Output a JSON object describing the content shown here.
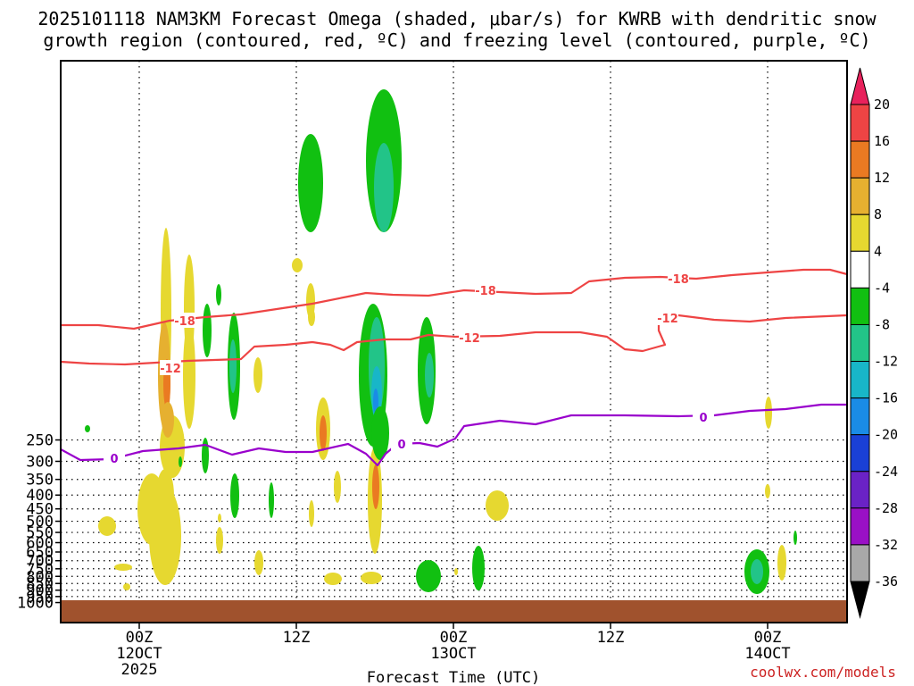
{
  "chart_data": {
    "type": "heatmap",
    "title_line1": "2025101118 NAM3KM Forecast Omega (shaded, μbar/s) for KWRB with dendritic snow",
    "title_line2": "growth region (contoured, red, ºC) and freezing level (contoured, purple, ºC)",
    "xlabel": "Forecast Time (UTC)",
    "credit": "coolwx.com/models",
    "y_ticks": [
      "250",
      "300",
      "350",
      "400",
      "450",
      "500",
      "550",
      "600",
      "650",
      "700",
      "750",
      "800",
      "850",
      "900",
      "950",
      "1000"
    ],
    "y_values": [
      250,
      300,
      350,
      400,
      450,
      500,
      550,
      600,
      650,
      700,
      750,
      800,
      850,
      900,
      950,
      1000
    ],
    "x_ticks": [
      {
        "hour": 6,
        "label1": "00Z",
        "label2": "12OCT",
        "label3": "2025"
      },
      {
        "hour": 18,
        "label1": "12Z",
        "label2": "",
        "label3": ""
      },
      {
        "hour": 30,
        "label1": "00Z",
        "label2": "13OCT",
        "label3": ""
      },
      {
        "hour": 42,
        "label1": "12Z",
        "label2": "",
        "label3": ""
      },
      {
        "hour": 54,
        "label1": "00Z",
        "label2": "14OCT",
        "label3": ""
      }
    ],
    "colorbar": {
      "labels": [
        "20",
        "16",
        "12",
        "8",
        "4",
        "-4",
        "-8",
        "-12",
        "-16",
        "-20",
        "-24",
        "-28",
        "-32",
        "-36"
      ],
      "colors": [
        "#e8225c",
        "#ee4444",
        "#ea7a22",
        "#e6b030",
        "#e6d830",
        "#ffffff",
        "#11c011",
        "#22c488",
        "#18b6c8",
        "#1a8ce6",
        "#1a40d6",
        "#6a22c6",
        "#9a10c6",
        "#a8a8a8",
        "#000000"
      ]
    },
    "contours": [
      {
        "name": "dgz_minus18",
        "label": "-18",
        "color": "#ee4444"
      },
      {
        "name": "dgz_minus12",
        "label": "-12",
        "color": "#ee4444"
      },
      {
        "name": "freezing_level",
        "label": "0",
        "color": "#9900cc"
      }
    ],
    "terrain_color": "#a0522d"
  }
}
